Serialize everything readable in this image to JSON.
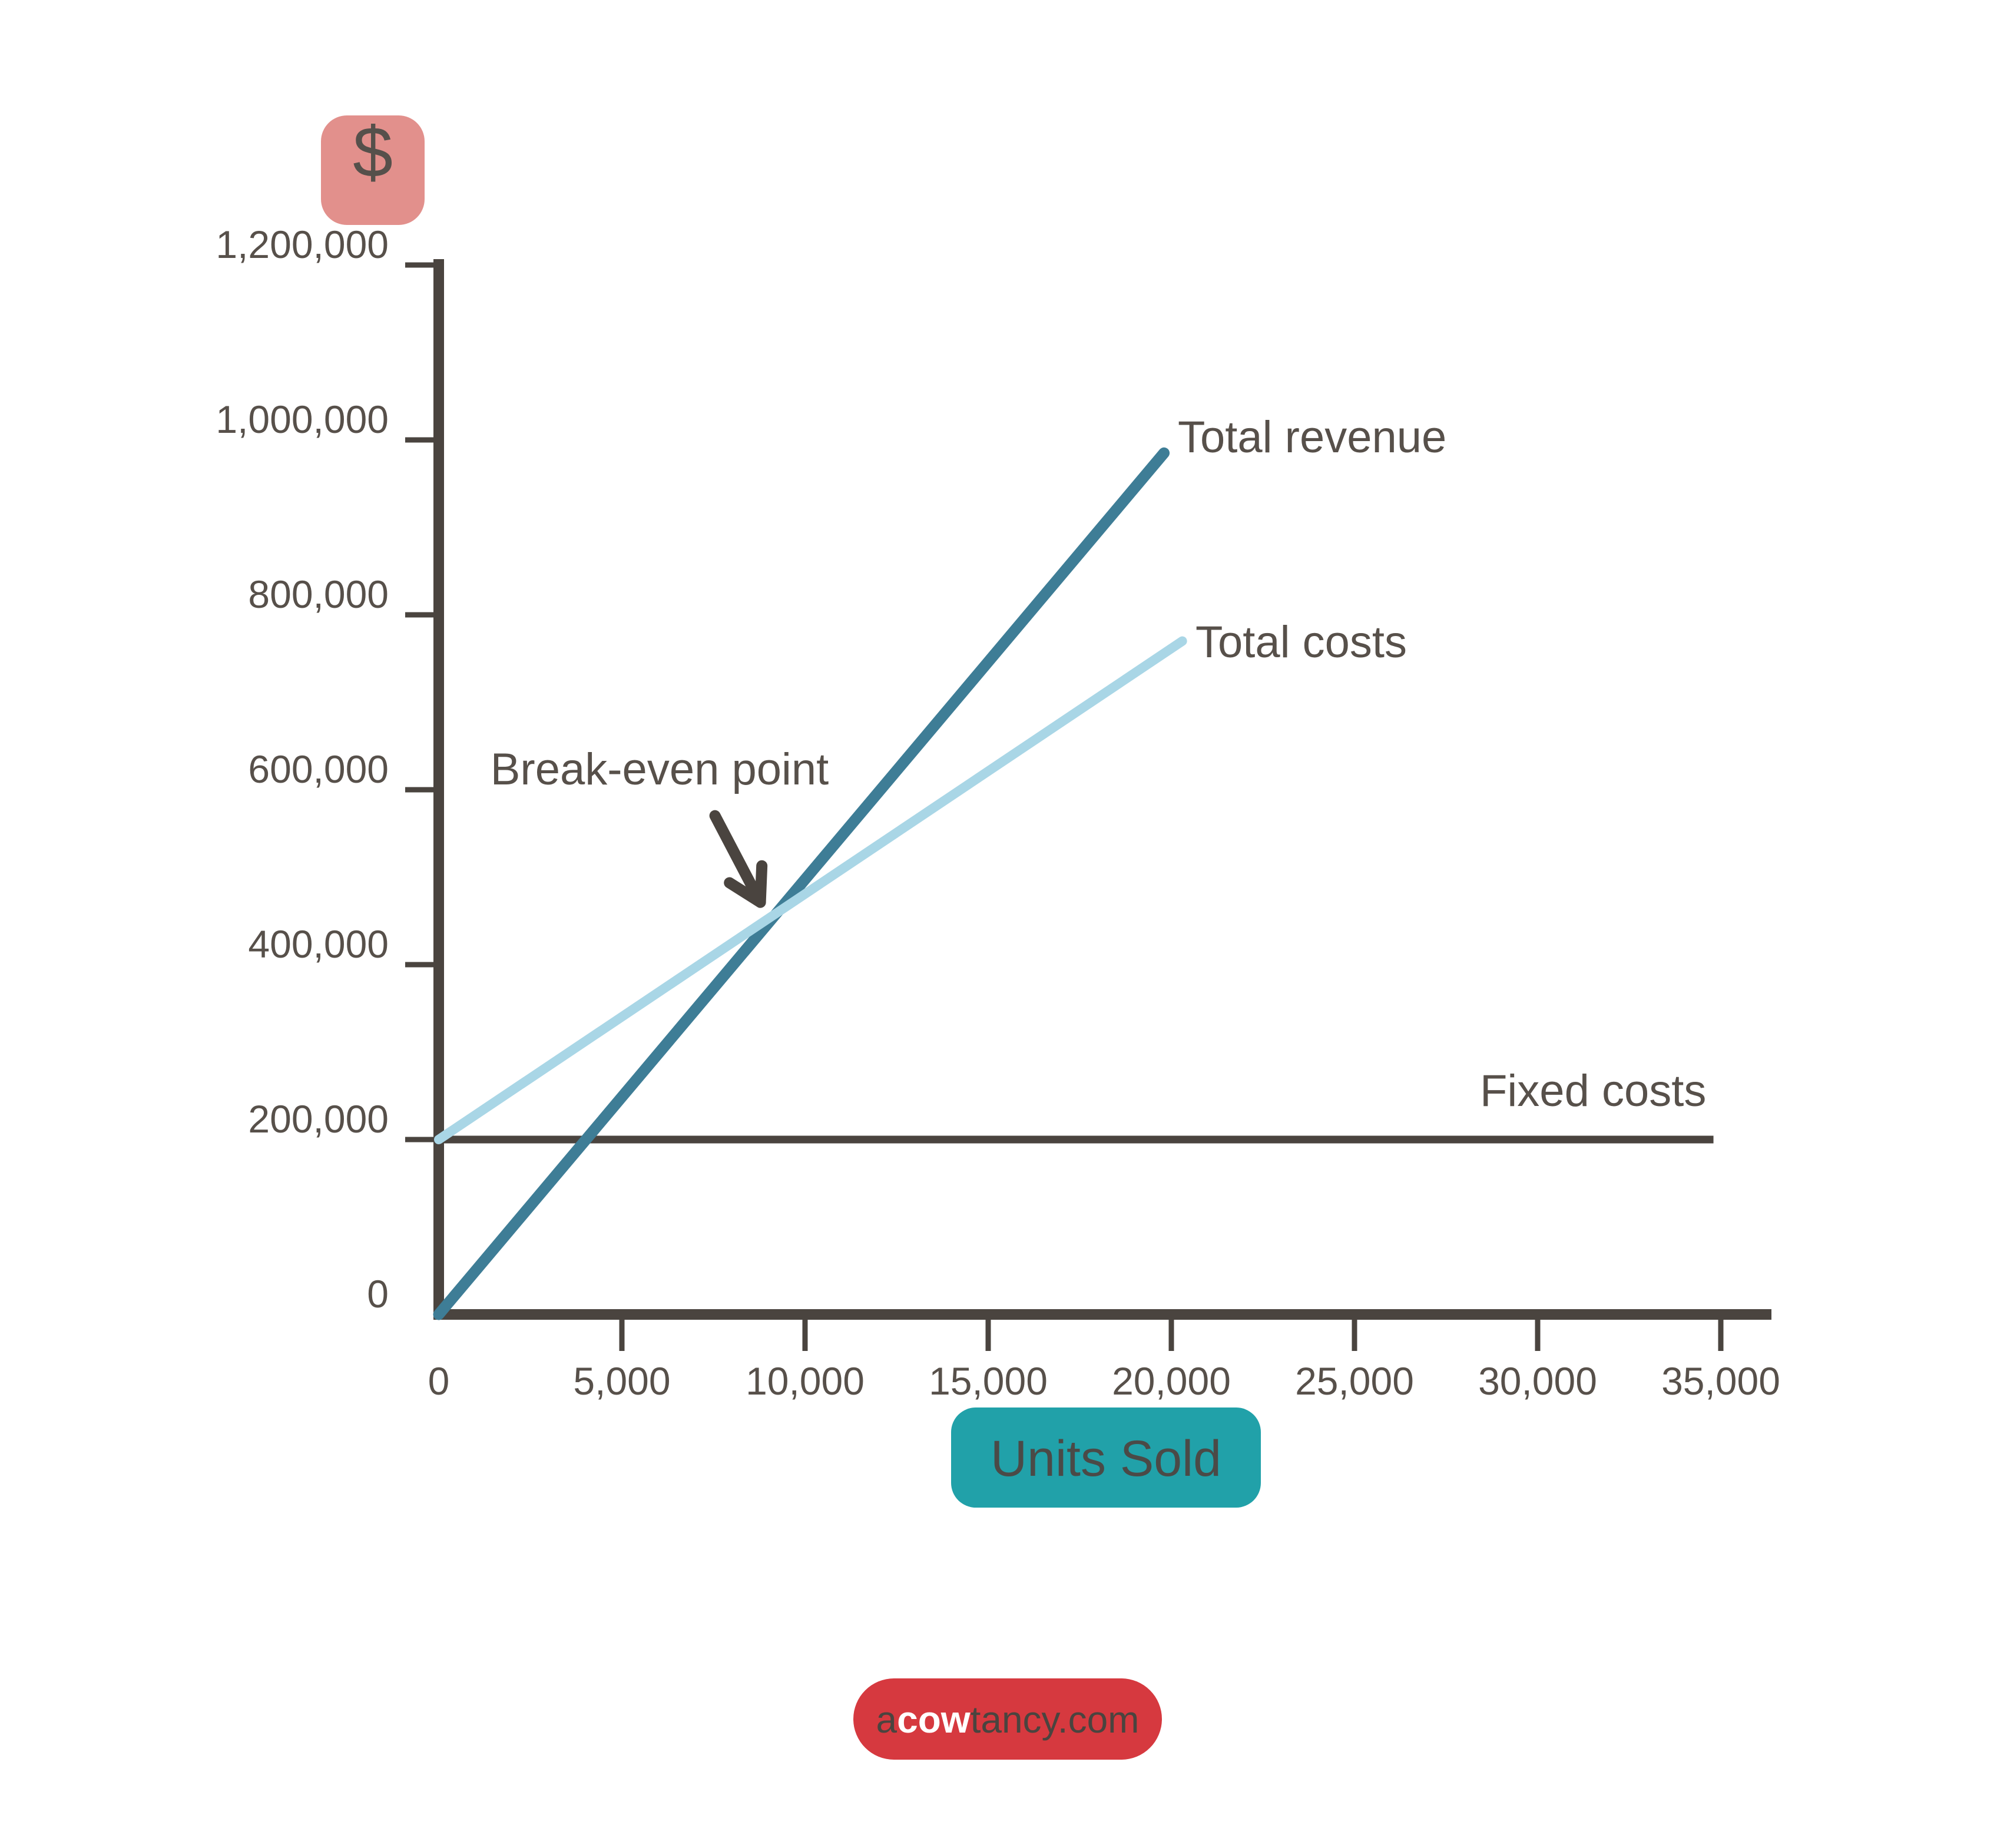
{
  "page": {
    "background": "#ffffff"
  },
  "colors": {
    "axis": "#4A443F",
    "text": "#57504A",
    "revenue_line": "#3E7D96",
    "costs_line": "#A9D6E6",
    "fixed_line": "#4A443F",
    "dollar_badge_bg": "#E2908C",
    "dollar_badge_text": "#56504B",
    "units_badge_bg": "#21A1A9",
    "units_badge_text": "#4B4A47",
    "logo_bg": "#D6393F",
    "logo_dark_text": "#4A443F",
    "logo_white_text": "#FFFFFF"
  },
  "branding": {
    "site": {
      "prefix": "a",
      "bold": "cow",
      "suffix": "tancy.com"
    }
  },
  "chart_data": {
    "type": "line",
    "title": "",
    "grid": false,
    "legend": "inline-labels",
    "axis_color": "#4A443F",
    "text_color": "#57504A",
    "y_axis": {
      "unit_badge": "$",
      "range": [
        0,
        1210000
      ],
      "tick_step": 200000,
      "ticks": [
        {
          "value": 0,
          "label": "0"
        },
        {
          "value": 200000,
          "label": "200,000"
        },
        {
          "value": 400000,
          "label": "400,000"
        },
        {
          "value": 600000,
          "label": "600,000"
        },
        {
          "value": 800000,
          "label": "800,000"
        },
        {
          "value": 1000000,
          "label": "1,000,000"
        },
        {
          "value": 1200000,
          "label": "1,200,000"
        }
      ]
    },
    "x_axis": {
      "badge": "Units Sold",
      "range": [
        0,
        36400
      ],
      "tick_step": 5000,
      "ticks": [
        {
          "value": 0,
          "label": "0"
        },
        {
          "value": 5000,
          "label": "5,000"
        },
        {
          "value": 10000,
          "label": "10,000"
        },
        {
          "value": 15000,
          "label": "15,000"
        },
        {
          "value": 20000,
          "label": "20,000"
        },
        {
          "value": 25000,
          "label": "25,000"
        },
        {
          "value": 30000,
          "label": "30,000"
        },
        {
          "value": 35000,
          "label": "35,000"
        }
      ]
    },
    "series": [
      {
        "name": "Total revenue",
        "color": "#3E7D96",
        "width": 19,
        "cap": "round",
        "points": [
          [
            0,
            0
          ],
          [
            19800,
            985000
          ]
        ]
      },
      {
        "name": "Total costs",
        "color": "#A9D6E6",
        "width": 16,
        "cap": "round",
        "points": [
          [
            0,
            200000
          ],
          [
            20300,
            770000
          ]
        ]
      },
      {
        "name": "Fixed costs",
        "color": "#4A443F",
        "width": 13,
        "cap": "butt",
        "points": [
          [
            0,
            200000
          ],
          [
            34800,
            200000
          ]
        ]
      }
    ],
    "annotation": {
      "text": "Break-even point",
      "points_to_series_intersection": [
        "Total revenue",
        "Total costs"
      ]
    }
  }
}
